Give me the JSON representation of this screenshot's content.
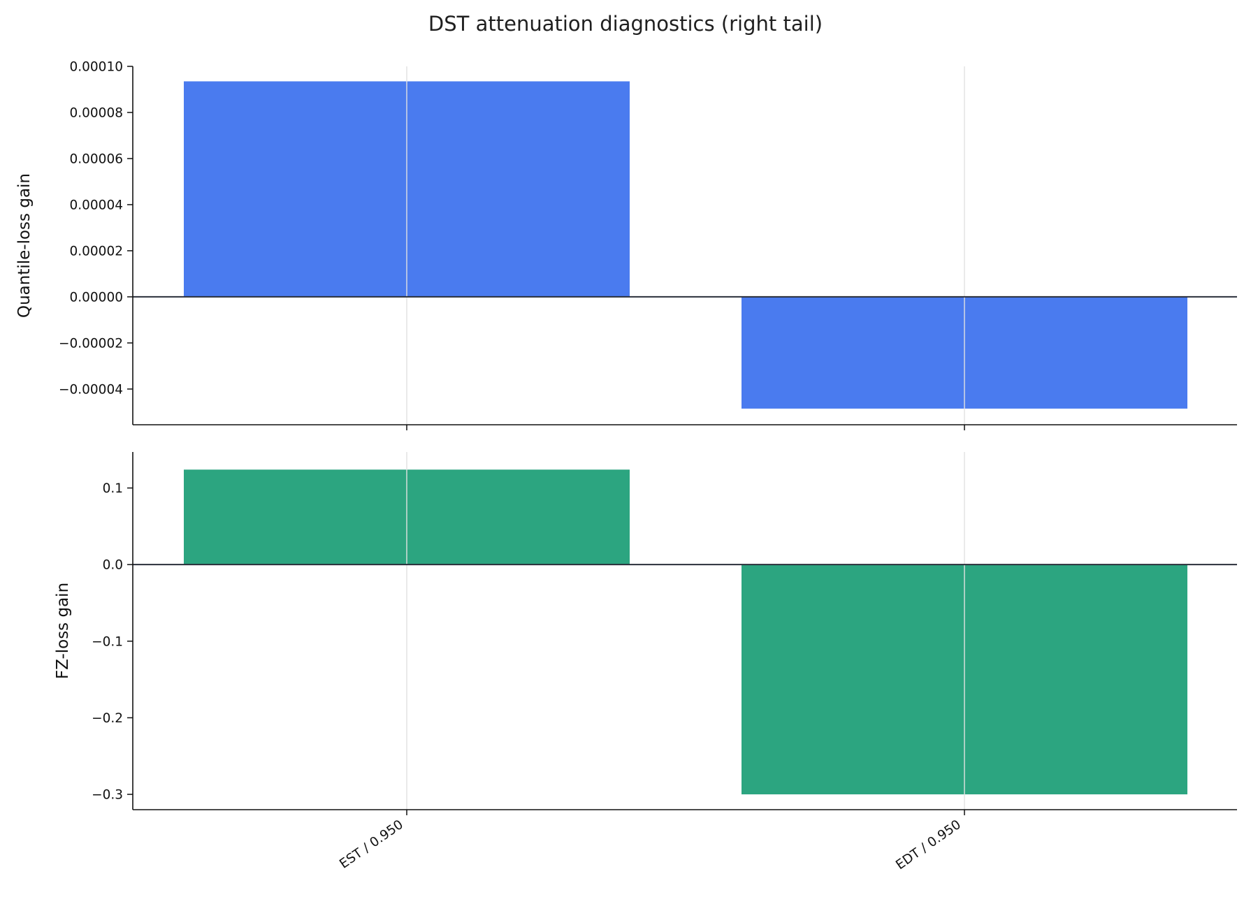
{
  "title": "DST attenuation diagnostics (right tail)",
  "chart_data": [
    {
      "type": "bar",
      "title": "",
      "xlabel": "",
      "ylabel": "Quantile-loss gain",
      "categories": [
        "EST / 0.950",
        "EDT / 0.950"
      ],
      "values": [
        9.35e-05,
        -4.85e-05
      ],
      "ylim": [
        -5.55e-05,
        0.0001
      ],
      "yticks": [
        -4e-05,
        -2e-05,
        0.0,
        2e-05,
        4e-05,
        6e-05,
        8e-05,
        0.0001
      ],
      "ytick_labels": [
        "−0.00004",
        "−0.00002",
        "0.00000",
        "0.00002",
        "0.00004",
        "0.00006",
        "0.00008",
        "0.00010"
      ],
      "color": "#4a7bef",
      "grid": "vertical",
      "legend": "none"
    },
    {
      "type": "bar",
      "title": "",
      "xlabel": "",
      "ylabel": "FZ-loss gain",
      "categories": [
        "EST / 0.950",
        "EDT / 0.950"
      ],
      "values": [
        0.124,
        -0.3
      ],
      "ylim": [
        -0.32,
        0.147
      ],
      "yticks": [
        -0.3,
        -0.2,
        -0.1,
        0.0,
        0.1
      ],
      "ytick_labels": [
        "−0.3",
        "−0.2",
        "−0.1",
        "0.0",
        "0.1"
      ],
      "color": "#2ca580",
      "grid": "vertical",
      "legend": "none"
    }
  ]
}
